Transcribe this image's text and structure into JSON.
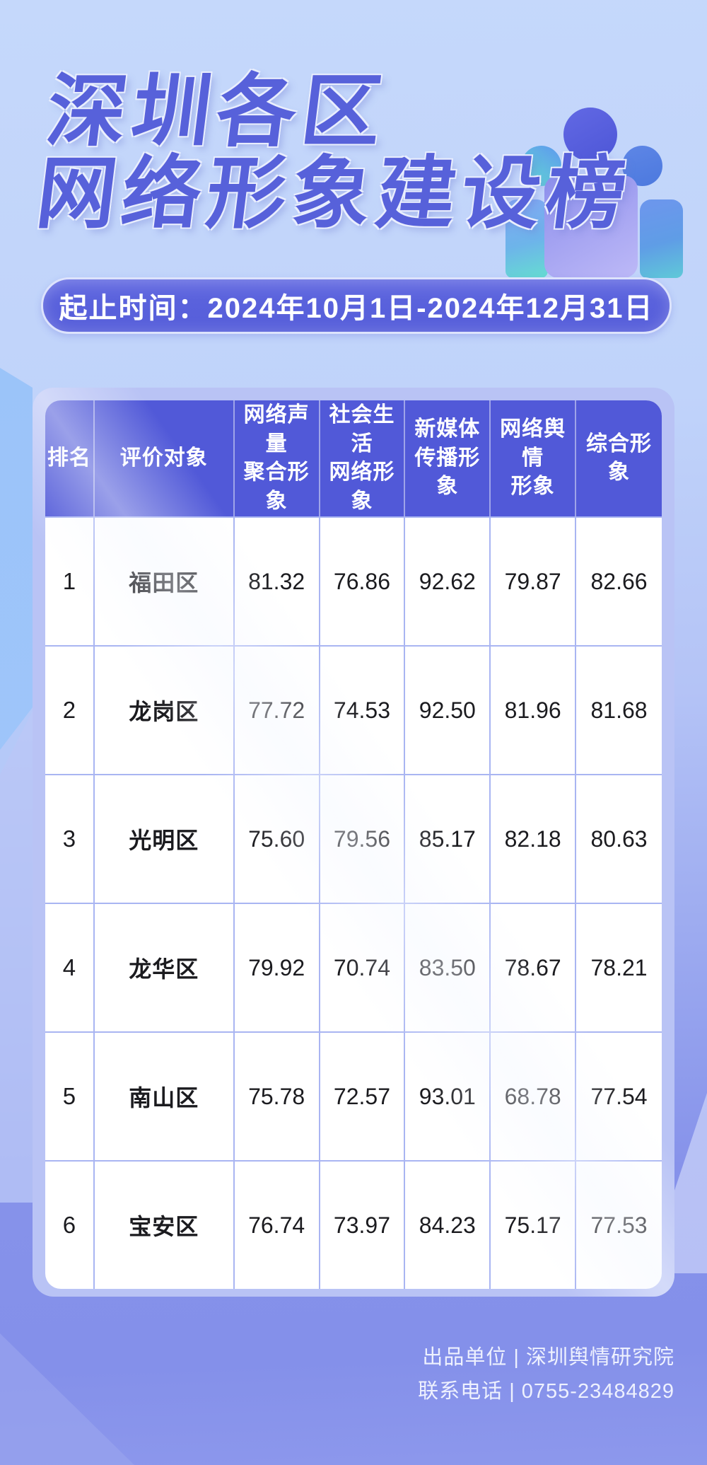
{
  "poster": {
    "title_line1": "深圳各区",
    "title_line2": "网络形象建设榜",
    "date_banner": "起止时间：2024年10月1日-2024年12月31日",
    "icon": "people-group-icon"
  },
  "table": {
    "columns": [
      "排名",
      "评价对象",
      "网络声量\n聚合形象",
      "社会生活\n网络形象",
      "新媒体\n传播形象",
      "网络舆情\n形象",
      "综合形象"
    ],
    "rows": [
      {
        "rank": "1",
        "district": "福田区",
        "scores": [
          "81.32",
          "76.86",
          "92.62",
          "79.87",
          "82.66"
        ]
      },
      {
        "rank": "2",
        "district": "龙岗区",
        "scores": [
          "77.72",
          "74.53",
          "92.50",
          "81.96",
          "81.68"
        ]
      },
      {
        "rank": "3",
        "district": "光明区",
        "scores": [
          "75.60",
          "79.56",
          "85.17",
          "82.18",
          "80.63"
        ]
      },
      {
        "rank": "4",
        "district": "龙华区",
        "scores": [
          "79.92",
          "70.74",
          "83.50",
          "78.67",
          "78.21"
        ]
      },
      {
        "rank": "5",
        "district": "南山区",
        "scores": [
          "75.78",
          "72.57",
          "93.01",
          "68.78",
          "77.54"
        ]
      },
      {
        "rank": "6",
        "district": "宝安区",
        "scores": [
          "76.74",
          "73.97",
          "84.23",
          "75.17",
          "77.53"
        ]
      }
    ]
  },
  "footer": {
    "line1": "出品单位 | 深圳舆情研究院",
    "line2": "联系电话 | 0755-23484829"
  },
  "colors": {
    "background_top": "#c5d8fb",
    "background_bottom": "#8490ea",
    "title_text": "#5761da",
    "banner_fill": "#5a62dc",
    "table_header_fill": "#5159d8",
    "table_card_fill": "#b9c3f5",
    "table_grid_line": "#a9b5f2",
    "body_text": "#1b1b1f",
    "footer_text": "#eef1fe"
  }
}
